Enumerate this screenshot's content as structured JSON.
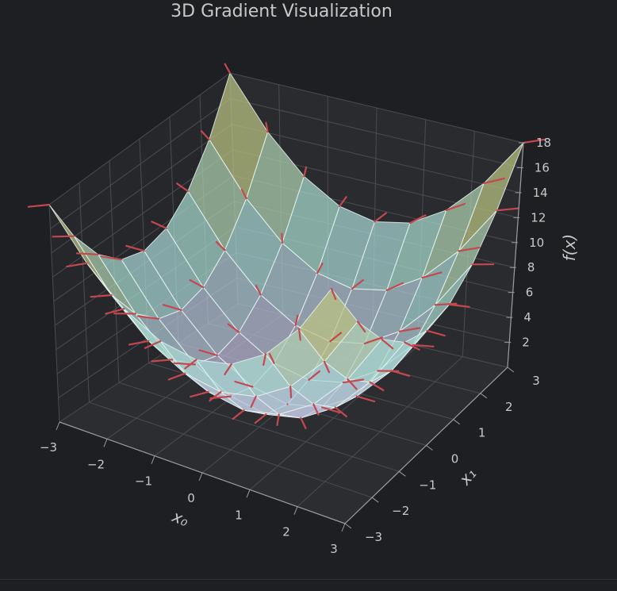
{
  "chart_data": {
    "type": "surface3d",
    "title": "3D Gradient Visualization",
    "xlabel": "x₀",
    "ylabel": "x₁",
    "zlabel": "f(x)",
    "function": "x0^2 + x1^2",
    "x": [
      -3,
      -2.25,
      -1.5,
      -0.75,
      0,
      0.75,
      1.5,
      2.25,
      3
    ],
    "y": [
      -3,
      -2.25,
      -1.5,
      -0.75,
      0,
      0.75,
      1.5,
      2.25,
      3
    ],
    "xticks": [
      "−3",
      "−2",
      "−1",
      "0",
      "1",
      "2",
      "3"
    ],
    "yticks": [
      "−3",
      "−2",
      "−1",
      "0",
      "1",
      "2",
      "3"
    ],
    "zticks": [
      "2",
      "4",
      "6",
      "8",
      "10",
      "12",
      "14",
      "16",
      "18"
    ],
    "xlim": [
      -3,
      3
    ],
    "ylim": [
      -3,
      3
    ],
    "zlim": [
      0,
      18
    ],
    "gradient_arrows": "red segments showing gradient direction at each grid point",
    "grid": true,
    "colors": {
      "background": "#1e1f22",
      "surface_low": "#c4b2dc",
      "surface_mid": "#a6dcd4",
      "surface_high": "#c9b24a",
      "gradient": "#c4484e",
      "text": "#c9c9c9"
    }
  }
}
